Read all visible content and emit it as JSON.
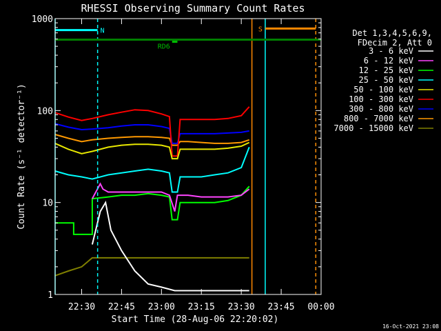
{
  "chart_data": {
    "type": "line",
    "title": "RHESSI Observing Summary Count Rates",
    "xlabel": "Start Time (28-Aug-06 22:20:02)",
    "ylabel": "Count Rate (s⁻¹ detector⁻¹)",
    "yscale": "log",
    "xlim": [
      "22:20:02",
      "00:00"
    ],
    "ylim": [
      1,
      1000
    ],
    "x_ticks": [
      "22:30",
      "22:45",
      "23:00",
      "23:15",
      "23:30",
      "23:45",
      "00:00"
    ],
    "y_ticks": [
      "1",
      "10",
      "100",
      "1000"
    ],
    "legend_title": [
      "Det 1,3,4,5,6,9,",
      "FDecim 2, Att 0"
    ],
    "legend_position": "right",
    "footer": "16-Oct-2021 23:08",
    "series": [
      {
        "name": "3 - 6 keV",
        "color": "#ffffff",
        "x": [
          "22:34",
          "22:37",
          "22:39",
          "22:41",
          "22:45",
          "22:50",
          "22:55",
          "23:00",
          "23:05",
          "23:10",
          "23:15",
          "23:20",
          "23:25",
          "23:30",
          "23:33"
        ],
        "values": [
          3.5,
          8,
          10,
          5,
          3,
          1.8,
          1.3,
          1.2,
          1.1,
          1.1,
          1.1,
          1.1,
          1.1,
          1.1,
          1.1
        ]
      },
      {
        "name": "6 - 12 keV",
        "color": "#ff44ff",
        "x": [
          "22:34",
          "22:37",
          "22:38",
          "22:40",
          "22:45",
          "22:50",
          "22:55",
          "23:00",
          "23:03",
          "23:05",
          "23:06",
          "23:10",
          "23:15",
          "23:20",
          "23:25",
          "23:30",
          "23:33"
        ],
        "values": [
          11,
          16,
          14,
          13,
          13,
          13,
          13,
          13,
          12,
          8,
          12,
          12,
          11.5,
          11.5,
          11.5,
          12,
          14
        ]
      },
      {
        "name": "12 - 25 keV",
        "color": "#00ff00",
        "x": [
          "22:20",
          "22:27",
          "22:27",
          "22:34",
          "22:34",
          "22:40",
          "22:45",
          "22:50",
          "22:55",
          "23:00",
          "23:03",
          "23:04",
          "23:06",
          "23:07",
          "23:10",
          "23:15",
          "23:20",
          "23:25",
          "23:30",
          "23:33"
        ],
        "values": [
          6,
          6,
          4.5,
          4.5,
          11,
          11.5,
          12,
          12,
          12.5,
          12,
          11.5,
          6.5,
          6.5,
          10,
          10,
          10,
          10,
          10.5,
          12,
          15
        ]
      },
      {
        "name": "25 - 50 keV",
        "color": "#00ffff",
        "x": [
          "22:20",
          "22:25",
          "22:30",
          "22:34",
          "22:40",
          "22:45",
          "22:50",
          "22:55",
          "23:00",
          "23:03",
          "23:04",
          "23:06",
          "23:07",
          "23:10",
          "23:15",
          "23:20",
          "23:25",
          "23:30",
          "23:33"
        ],
        "values": [
          22,
          20,
          19,
          18,
          20,
          21,
          22,
          23,
          22,
          21,
          13,
          13,
          19,
          19,
          19,
          20,
          21,
          24,
          40
        ]
      },
      {
        "name": "50 - 100 keV",
        "color": "#e8e800",
        "x": [
          "22:20",
          "22:25",
          "22:30",
          "22:34",
          "22:40",
          "22:45",
          "22:50",
          "22:55",
          "23:00",
          "23:03",
          "23:04",
          "23:06",
          "23:07",
          "23:10",
          "23:15",
          "23:20",
          "23:25",
          "23:30",
          "23:33"
        ],
        "values": [
          44,
          38,
          34,
          36,
          40,
          42,
          43,
          43,
          42,
          40,
          30,
          30,
          38,
          38,
          38,
          38,
          39,
          41,
          45
        ]
      },
      {
        "name": "100 - 300 keV",
        "color": "#ff0000",
        "x": [
          "22:20",
          "22:25",
          "22:30",
          "22:34",
          "22:40",
          "22:45",
          "22:50",
          "22:55",
          "23:00",
          "23:03",
          "23:04",
          "23:06",
          "23:07",
          "23:10",
          "23:15",
          "23:20",
          "23:25",
          "23:30",
          "23:33"
        ],
        "values": [
          95,
          85,
          78,
          82,
          90,
          96,
          102,
          100,
          92,
          86,
          32,
          32,
          80,
          80,
          80,
          80,
          82,
          88,
          110
        ]
      },
      {
        "name": "300 - 800 keV",
        "color": "#0000ff",
        "x": [
          "22:20",
          "22:25",
          "22:30",
          "22:34",
          "22:40",
          "22:45",
          "22:50",
          "22:55",
          "23:00",
          "23:03",
          "23:04",
          "23:06",
          "23:07",
          "23:10",
          "23:15",
          "23:20",
          "23:25",
          "23:30",
          "23:33"
        ],
        "values": [
          72,
          66,
          62,
          63,
          65,
          68,
          70,
          70,
          67,
          64,
          44,
          44,
          56,
          56,
          56,
          56,
          57,
          58,
          60
        ]
      },
      {
        "name": "800 - 7000 keV",
        "color": "#ff9900",
        "x": [
          "22:20",
          "22:25",
          "22:30",
          "22:34",
          "22:40",
          "22:45",
          "22:50",
          "22:55",
          "23:00",
          "23:03",
          "23:04",
          "23:06",
          "23:07",
          "23:10",
          "23:15",
          "23:20",
          "23:25",
          "23:30",
          "23:33"
        ],
        "values": [
          55,
          50,
          46,
          48,
          50,
          51,
          52,
          52,
          51,
          50,
          42,
          42,
          46,
          46,
          45,
          44,
          44,
          45,
          48
        ]
      },
      {
        "name": "7000 - 15000 keV",
        "color": "#808000",
        "x": [
          "22:20",
          "22:25",
          "22:30",
          "22:34",
          "22:40",
          "22:45",
          "22:50",
          "22:55",
          "23:00",
          "23:05",
          "23:10",
          "23:15",
          "23:20",
          "23:25",
          "23:30",
          "23:33"
        ],
        "values": [
          1.6,
          1.8,
          2,
          2.5,
          2.5,
          2.5,
          2.5,
          2.5,
          2.5,
          2.5,
          2.5,
          2.5,
          2.5,
          2.5,
          2.5,
          2.5
        ]
      }
    ],
    "annotations": [
      {
        "label": "N",
        "color": "#00ffff",
        "y": 750,
        "x_start": "22:20:02",
        "x_end": "22:36"
      },
      {
        "label": "RD6",
        "color": "#00c000",
        "y": 560,
        "x_start": "23:04",
        "x_end": "23:06"
      },
      {
        "label": "S",
        "color": "#ff8800",
        "y": 780,
        "x_start": "23:39",
        "x_end": "23:58"
      }
    ],
    "solid_band": {
      "color": "#008000",
      "y": 590,
      "x_start": "22:20:02",
      "x_end": "00:00"
    },
    "vertical_lines": [
      {
        "x": "22:20:02",
        "color": "#00ffff",
        "style": "solid"
      },
      {
        "x": "22:36",
        "color": "#00ffff",
        "style": "dashed"
      },
      {
        "x": "23:34",
        "color": "#ff8800",
        "style": "solid"
      },
      {
        "x": "23:39",
        "color": "#00ffff",
        "style": "solid"
      },
      {
        "x": "23:58",
        "color": "#00ffff",
        "style": "dashed"
      },
      {
        "x": "23:58",
        "color": "#ff8800",
        "style": "dashed"
      }
    ]
  }
}
